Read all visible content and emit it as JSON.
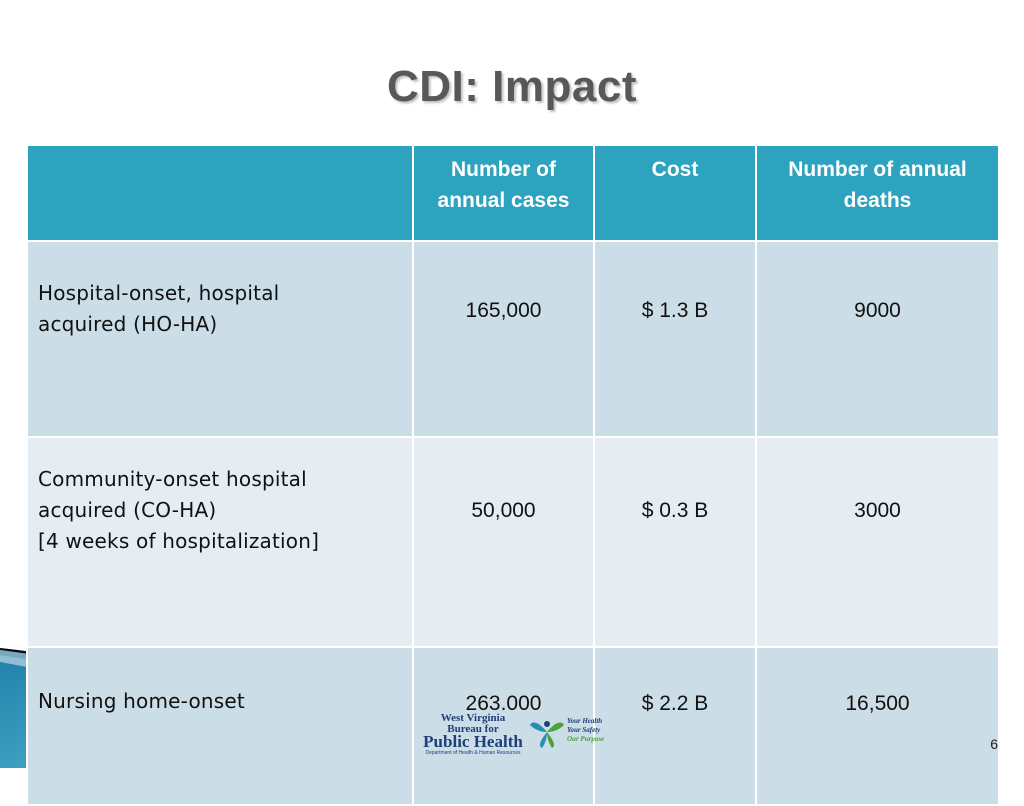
{
  "slide": {
    "title": "CDI: Impact",
    "page_number": "6"
  },
  "table": {
    "headers": [
      "",
      "Number of annual cases",
      "Cost",
      "Number of annual deaths"
    ],
    "rows": [
      {
        "label_lines": [
          "Hospital-onset, hospital",
          "acquired (HO-HA)"
        ],
        "cases": "165,000",
        "cost": "$ 1.3 B",
        "deaths": "9000"
      },
      {
        "label_lines": [
          "Community-onset hospital",
          "acquired (CO-HA)",
          "[4 weeks of hospitalization]"
        ],
        "cases": "50,000",
        "cost": "$ 0.3 B",
        "deaths": "3000"
      },
      {
        "label_lines": [
          "Nursing home-onset"
        ],
        "cases": "263.000",
        "cost": "$ 2.2 B",
        "deaths": "16,500"
      }
    ]
  },
  "logo": {
    "line1": "West Virginia",
    "line2": "Bureau for",
    "line3": "Public Health",
    "line4": "Department of Health & Human Resources",
    "tag1": "Your Health",
    "tag2": "Your Safety",
    "tag3": "Our Purpose"
  },
  "colors": {
    "header_bg": "#2ea3bf",
    "row_dark": "#cbdde6",
    "row_light": "#e5edf2",
    "title": "#585858",
    "wave_teal": "#2b8db0"
  }
}
